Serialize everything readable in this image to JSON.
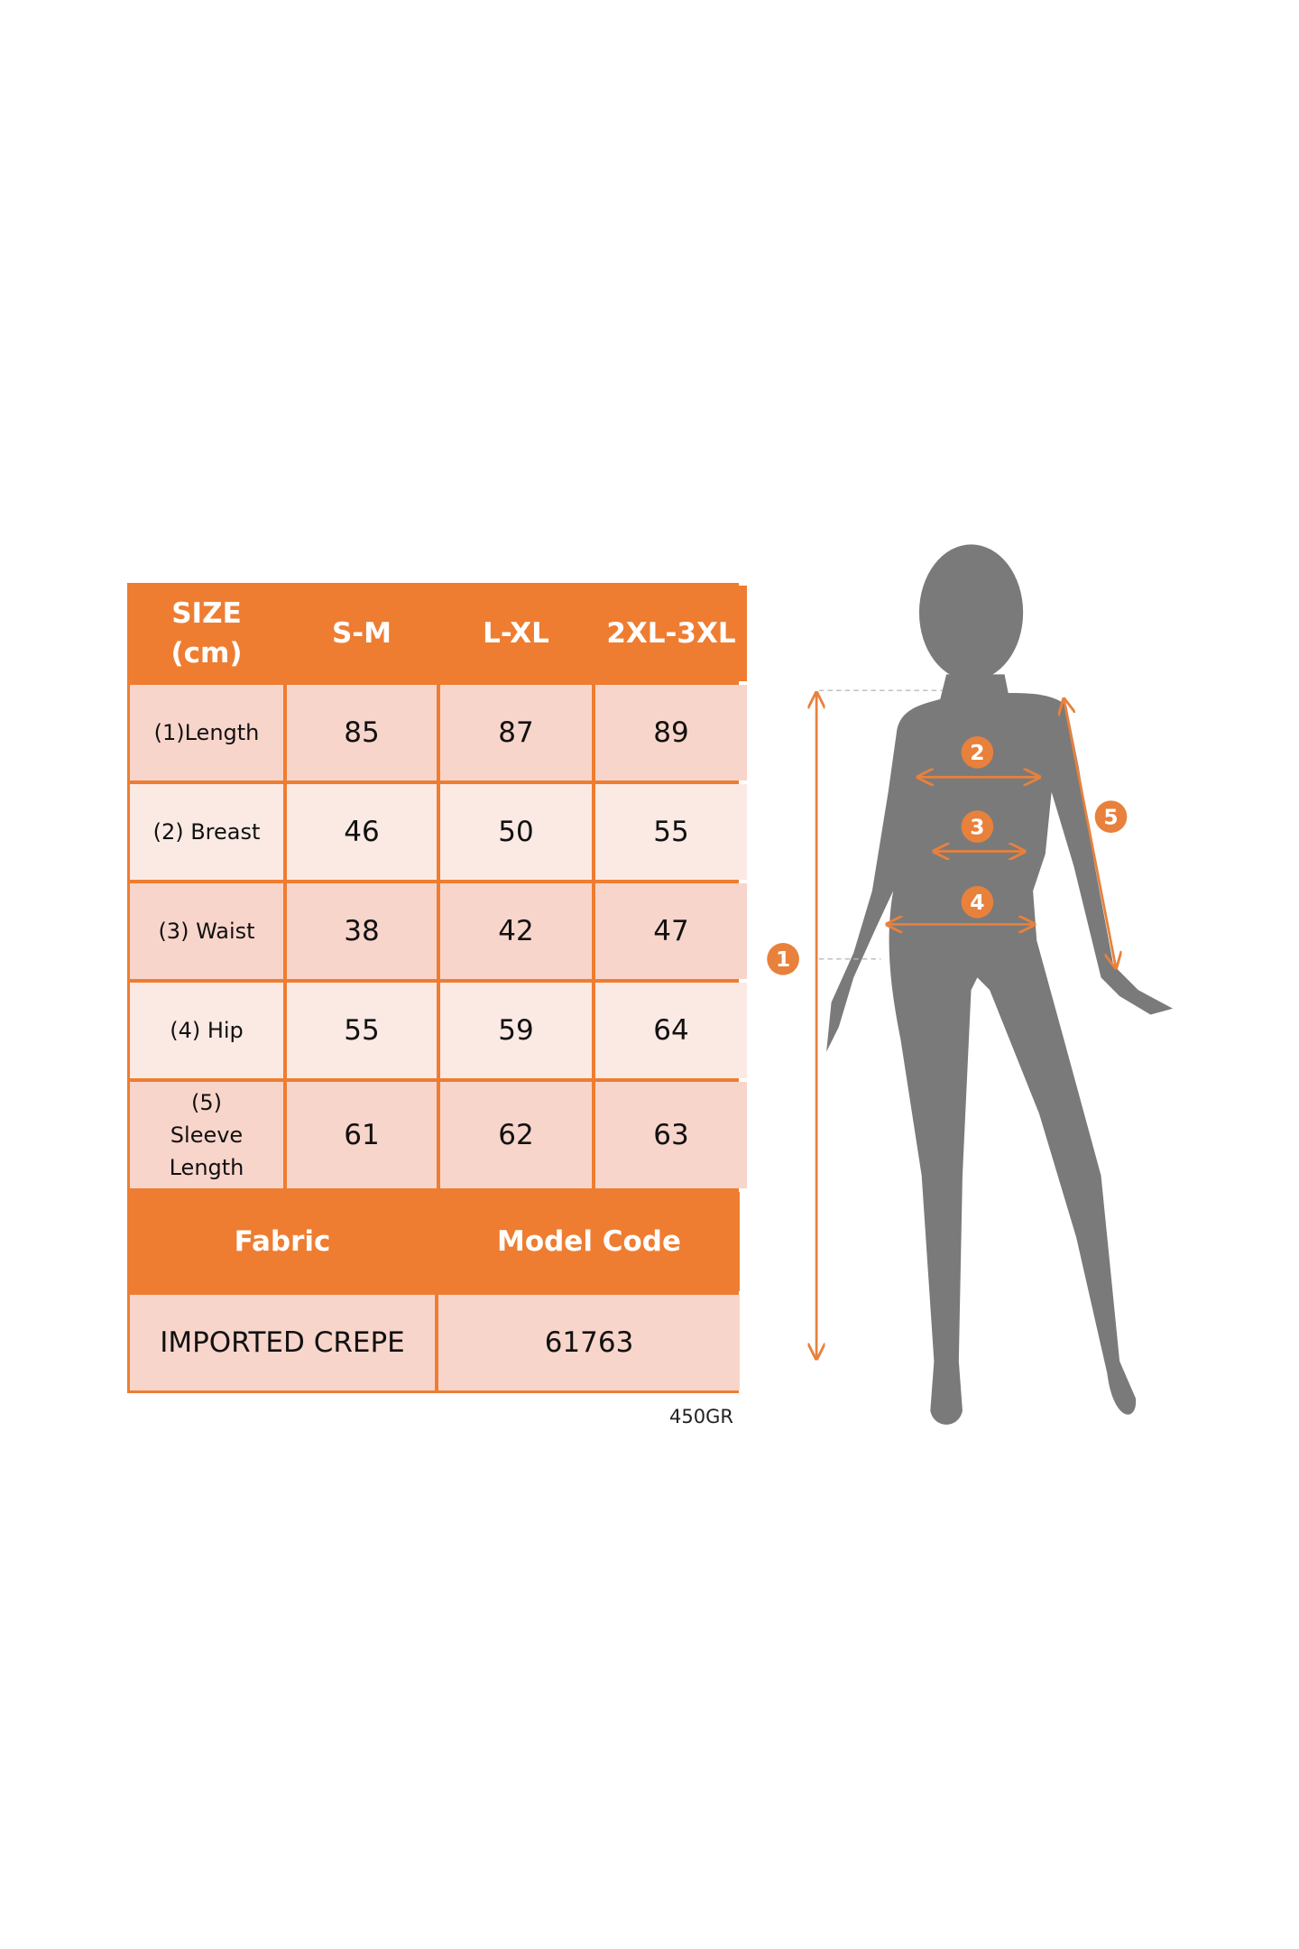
{
  "table": {
    "header": [
      "SIZE\n(cm)",
      "S-M",
      "L-XL",
      "2XL-3XL"
    ],
    "rows": [
      {
        "label": "(1)Length",
        "values": [
          "85",
          "87",
          "89"
        ]
      },
      {
        "label": "(2) Breast",
        "values": [
          "46",
          "50",
          "55"
        ]
      },
      {
        "label": "(3) Waist",
        "values": [
          "38",
          "42",
          "47"
        ]
      },
      {
        "label": "(4) Hip",
        "values": [
          "55",
          "59",
          "64"
        ]
      },
      {
        "label": "(5) Sleeve Length",
        "values": [
          "61",
          "62",
          "63"
        ]
      }
    ],
    "fabric_header": "Fabric",
    "model_code_header": "Model Code",
    "fabric_value": "IMPORTED CREPE",
    "model_code_value": "61763"
  },
  "footnote": "450GR",
  "figure": {
    "markers": [
      "1",
      "2",
      "3",
      "4",
      "5"
    ]
  },
  "colors": {
    "accent": "#ee7d31",
    "cell": "#f8d5cb",
    "cell_light": "#fbe9e4",
    "silhouette": "#7a7a7a",
    "arrow": "#e8813c"
  }
}
